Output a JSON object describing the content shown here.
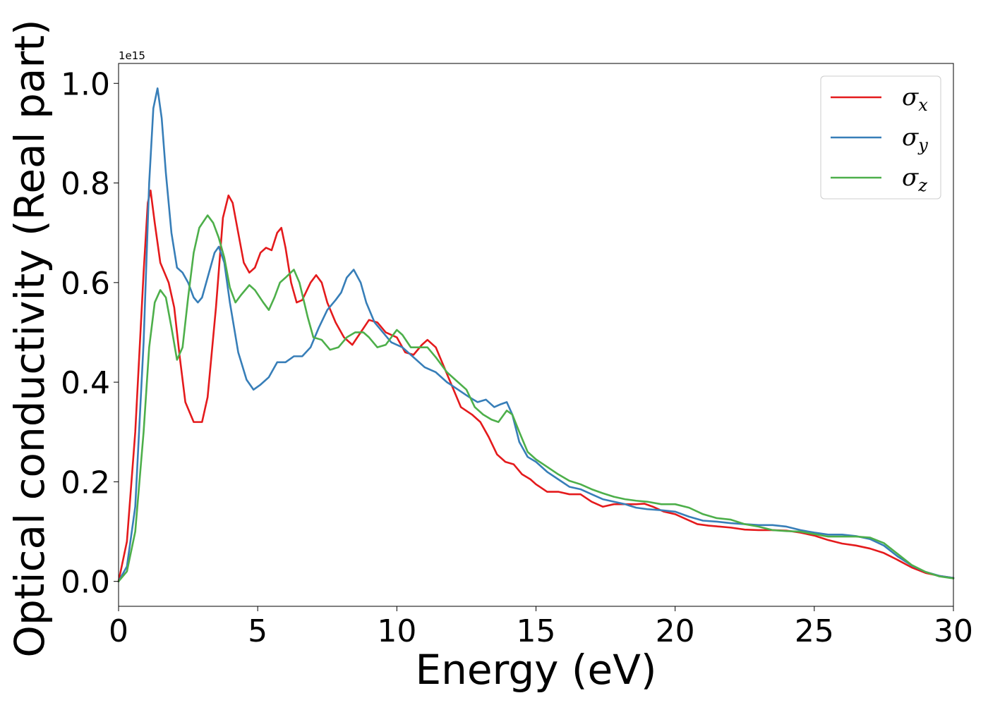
{
  "chart_data": {
    "type": "line",
    "title": "",
    "xlabel": "Energy (eV)",
    "ylabel": "Optical conductivity (Real part)",
    "offset_text": "1e15",
    "xlim": [
      0,
      30
    ],
    "ylim": [
      -0.05,
      1.04
    ],
    "x_ticks": [
      0,
      5,
      10,
      15,
      20,
      25,
      30
    ],
    "y_ticks": [
      0.0,
      0.2,
      0.4,
      0.6,
      0.8,
      1.0
    ],
    "x_tick_labels": [
      "0",
      "5",
      "10",
      "15",
      "20",
      "25",
      "30"
    ],
    "y_tick_labels": [
      "0.0",
      "0.2",
      "0.4",
      "0.6",
      "0.8",
      "1.0"
    ],
    "grid": false,
    "legend_position": "top-right",
    "series": [
      {
        "name": "σx",
        "symbol": "σ",
        "subscript": "x",
        "color": "#e41a1c",
        "points": [
          [
            0,
            0
          ],
          [
            0.3,
            0.08
          ],
          [
            0.6,
            0.3
          ],
          [
            0.9,
            0.62
          ],
          [
            1.05,
            0.76
          ],
          [
            1.15,
            0.785
          ],
          [
            1.3,
            0.72
          ],
          [
            1.5,
            0.64
          ],
          [
            1.8,
            0.6
          ],
          [
            2.0,
            0.55
          ],
          [
            2.2,
            0.45
          ],
          [
            2.4,
            0.36
          ],
          [
            2.7,
            0.32
          ],
          [
            3.0,
            0.32
          ],
          [
            3.2,
            0.37
          ],
          [
            3.5,
            0.55
          ],
          [
            3.75,
            0.73
          ],
          [
            3.95,
            0.775
          ],
          [
            4.1,
            0.76
          ],
          [
            4.3,
            0.7
          ],
          [
            4.5,
            0.64
          ],
          [
            4.7,
            0.62
          ],
          [
            4.9,
            0.63
          ],
          [
            5.1,
            0.66
          ],
          [
            5.3,
            0.67
          ],
          [
            5.5,
            0.665
          ],
          [
            5.7,
            0.7
          ],
          [
            5.85,
            0.71
          ],
          [
            6.0,
            0.67
          ],
          [
            6.2,
            0.6
          ],
          [
            6.4,
            0.56
          ],
          [
            6.6,
            0.565
          ],
          [
            6.9,
            0.6
          ],
          [
            7.1,
            0.615
          ],
          [
            7.3,
            0.6
          ],
          [
            7.5,
            0.56
          ],
          [
            7.8,
            0.52
          ],
          [
            8.1,
            0.49
          ],
          [
            8.4,
            0.475
          ],
          [
            8.7,
            0.5
          ],
          [
            9.0,
            0.525
          ],
          [
            9.3,
            0.52
          ],
          [
            9.6,
            0.5
          ],
          [
            10.0,
            0.49
          ],
          [
            10.3,
            0.46
          ],
          [
            10.6,
            0.455
          ],
          [
            10.9,
            0.475
          ],
          [
            11.1,
            0.485
          ],
          [
            11.4,
            0.47
          ],
          [
            11.7,
            0.43
          ],
          [
            12.0,
            0.39
          ],
          [
            12.3,
            0.35
          ],
          [
            12.7,
            0.335
          ],
          [
            13.0,
            0.32
          ],
          [
            13.3,
            0.29
          ],
          [
            13.6,
            0.255
          ],
          [
            13.9,
            0.24
          ],
          [
            14.2,
            0.235
          ],
          [
            14.5,
            0.215
          ],
          [
            14.8,
            0.205
          ],
          [
            15.0,
            0.195
          ],
          [
            15.4,
            0.18
          ],
          [
            15.8,
            0.18
          ],
          [
            16.2,
            0.175
          ],
          [
            16.6,
            0.175
          ],
          [
            17.0,
            0.16
          ],
          [
            17.4,
            0.15
          ],
          [
            17.8,
            0.155
          ],
          [
            18.2,
            0.155
          ],
          [
            18.6,
            0.155
          ],
          [
            18.9,
            0.156
          ],
          [
            19.2,
            0.15
          ],
          [
            19.6,
            0.14
          ],
          [
            20.0,
            0.135
          ],
          [
            20.4,
            0.125
          ],
          [
            20.8,
            0.115
          ],
          [
            21.2,
            0.112
          ],
          [
            21.6,
            0.11
          ],
          [
            22.0,
            0.108
          ],
          [
            22.5,
            0.104
          ],
          [
            23.0,
            0.103
          ],
          [
            23.5,
            0.103
          ],
          [
            24.0,
            0.102
          ],
          [
            24.5,
            0.098
          ],
          [
            25.0,
            0.092
          ],
          [
            25.5,
            0.083
          ],
          [
            26.0,
            0.076
          ],
          [
            26.5,
            0.072
          ],
          [
            27.0,
            0.066
          ],
          [
            27.5,
            0.057
          ],
          [
            28.0,
            0.043
          ],
          [
            28.5,
            0.028
          ],
          [
            29.0,
            0.017
          ],
          [
            29.5,
            0.011
          ],
          [
            30.0,
            0.007
          ]
        ]
      },
      {
        "name": "σy",
        "symbol": "σ",
        "subscript": "y",
        "color": "#377eb8",
        "points": [
          [
            0,
            0
          ],
          [
            0.3,
            0.03
          ],
          [
            0.6,
            0.15
          ],
          [
            0.9,
            0.48
          ],
          [
            1.1,
            0.8
          ],
          [
            1.25,
            0.95
          ],
          [
            1.4,
            0.99
          ],
          [
            1.55,
            0.93
          ],
          [
            1.7,
            0.82
          ],
          [
            1.9,
            0.7
          ],
          [
            2.1,
            0.63
          ],
          [
            2.3,
            0.62
          ],
          [
            2.5,
            0.6
          ],
          [
            2.7,
            0.57
          ],
          [
            2.85,
            0.56
          ],
          [
            3.0,
            0.57
          ],
          [
            3.2,
            0.61
          ],
          [
            3.45,
            0.66
          ],
          [
            3.6,
            0.672
          ],
          [
            3.8,
            0.64
          ],
          [
            4.0,
            0.56
          ],
          [
            4.3,
            0.46
          ],
          [
            4.6,
            0.405
          ],
          [
            4.85,
            0.385
          ],
          [
            5.1,
            0.395
          ],
          [
            5.4,
            0.41
          ],
          [
            5.7,
            0.44
          ],
          [
            6.0,
            0.44
          ],
          [
            6.3,
            0.452
          ],
          [
            6.6,
            0.452
          ],
          [
            6.9,
            0.47
          ],
          [
            7.2,
            0.51
          ],
          [
            7.5,
            0.545
          ],
          [
            7.8,
            0.565
          ],
          [
            8.0,
            0.58
          ],
          [
            8.2,
            0.61
          ],
          [
            8.45,
            0.626
          ],
          [
            8.7,
            0.6
          ],
          [
            8.9,
            0.56
          ],
          [
            9.2,
            0.52
          ],
          [
            9.5,
            0.5
          ],
          [
            9.8,
            0.48
          ],
          [
            10.2,
            0.47
          ],
          [
            10.6,
            0.45
          ],
          [
            11.0,
            0.43
          ],
          [
            11.4,
            0.42
          ],
          [
            11.8,
            0.4
          ],
          [
            12.2,
            0.385
          ],
          [
            12.6,
            0.37
          ],
          [
            12.9,
            0.36
          ],
          [
            13.2,
            0.365
          ],
          [
            13.5,
            0.35
          ],
          [
            13.7,
            0.355
          ],
          [
            13.95,
            0.36
          ],
          [
            14.15,
            0.335
          ],
          [
            14.4,
            0.28
          ],
          [
            14.7,
            0.25
          ],
          [
            15.0,
            0.24
          ],
          [
            15.4,
            0.22
          ],
          [
            15.8,
            0.205
          ],
          [
            16.2,
            0.19
          ],
          [
            16.6,
            0.185
          ],
          [
            17.0,
            0.175
          ],
          [
            17.4,
            0.165
          ],
          [
            17.8,
            0.16
          ],
          [
            18.2,
            0.155
          ],
          [
            18.6,
            0.148
          ],
          [
            19.0,
            0.145
          ],
          [
            19.5,
            0.143
          ],
          [
            20.0,
            0.14
          ],
          [
            20.5,
            0.13
          ],
          [
            21.0,
            0.122
          ],
          [
            21.5,
            0.12
          ],
          [
            22.0,
            0.117
          ],
          [
            22.5,
            0.115
          ],
          [
            23.0,
            0.113
          ],
          [
            23.5,
            0.113
          ],
          [
            24.0,
            0.11
          ],
          [
            24.5,
            0.103
          ],
          [
            25.0,
            0.098
          ],
          [
            25.5,
            0.094
          ],
          [
            26.0,
            0.094
          ],
          [
            26.5,
            0.091
          ],
          [
            27.0,
            0.085
          ],
          [
            27.5,
            0.072
          ],
          [
            28.0,
            0.05
          ],
          [
            28.5,
            0.032
          ],
          [
            29.0,
            0.019
          ],
          [
            29.5,
            0.011
          ],
          [
            30.0,
            0.007
          ]
        ]
      },
      {
        "name": "σz",
        "symbol": "σ",
        "subscript": "z",
        "color": "#4daf4a",
        "points": [
          [
            0,
            0
          ],
          [
            0.3,
            0.02
          ],
          [
            0.6,
            0.1
          ],
          [
            0.9,
            0.3
          ],
          [
            1.1,
            0.47
          ],
          [
            1.3,
            0.56
          ],
          [
            1.5,
            0.585
          ],
          [
            1.7,
            0.57
          ],
          [
            1.9,
            0.51
          ],
          [
            2.1,
            0.445
          ],
          [
            2.3,
            0.47
          ],
          [
            2.5,
            0.57
          ],
          [
            2.7,
            0.66
          ],
          [
            2.9,
            0.71
          ],
          [
            3.2,
            0.735
          ],
          [
            3.4,
            0.72
          ],
          [
            3.6,
            0.69
          ],
          [
            3.8,
            0.65
          ],
          [
            4.0,
            0.59
          ],
          [
            4.2,
            0.56
          ],
          [
            4.4,
            0.575
          ],
          [
            4.7,
            0.595
          ],
          [
            4.9,
            0.585
          ],
          [
            5.2,
            0.56
          ],
          [
            5.4,
            0.545
          ],
          [
            5.6,
            0.57
          ],
          [
            5.8,
            0.6
          ],
          [
            6.0,
            0.61
          ],
          [
            6.3,
            0.626
          ],
          [
            6.5,
            0.6
          ],
          [
            6.8,
            0.53
          ],
          [
            7.0,
            0.49
          ],
          [
            7.3,
            0.485
          ],
          [
            7.6,
            0.465
          ],
          [
            7.9,
            0.47
          ],
          [
            8.2,
            0.49
          ],
          [
            8.5,
            0.5
          ],
          [
            8.8,
            0.5
          ],
          [
            9.0,
            0.49
          ],
          [
            9.3,
            0.47
          ],
          [
            9.6,
            0.475
          ],
          [
            9.8,
            0.49
          ],
          [
            10.0,
            0.505
          ],
          [
            10.2,
            0.495
          ],
          [
            10.5,
            0.47
          ],
          [
            10.8,
            0.47
          ],
          [
            11.1,
            0.47
          ],
          [
            11.4,
            0.45
          ],
          [
            11.8,
            0.42
          ],
          [
            12.2,
            0.4
          ],
          [
            12.5,
            0.385
          ],
          [
            12.8,
            0.35
          ],
          [
            13.1,
            0.335
          ],
          [
            13.4,
            0.325
          ],
          [
            13.65,
            0.32
          ],
          [
            13.95,
            0.343
          ],
          [
            14.15,
            0.335
          ],
          [
            14.4,
            0.3
          ],
          [
            14.7,
            0.26
          ],
          [
            15.0,
            0.245
          ],
          [
            15.4,
            0.23
          ],
          [
            15.8,
            0.215
          ],
          [
            16.2,
            0.202
          ],
          [
            16.6,
            0.195
          ],
          [
            17.0,
            0.185
          ],
          [
            17.4,
            0.177
          ],
          [
            17.8,
            0.17
          ],
          [
            18.2,
            0.165
          ],
          [
            18.6,
            0.162
          ],
          [
            19.0,
            0.16
          ],
          [
            19.5,
            0.155
          ],
          [
            20.0,
            0.155
          ],
          [
            20.5,
            0.148
          ],
          [
            21.0,
            0.135
          ],
          [
            21.5,
            0.127
          ],
          [
            22.0,
            0.124
          ],
          [
            22.5,
            0.115
          ],
          [
            23.0,
            0.11
          ],
          [
            23.5,
            0.103
          ],
          [
            24.0,
            0.101
          ],
          [
            24.5,
            0.1
          ],
          [
            25.0,
            0.095
          ],
          [
            25.5,
            0.09
          ],
          [
            26.0,
            0.09
          ],
          [
            26.5,
            0.09
          ],
          [
            27.0,
            0.088
          ],
          [
            27.5,
            0.077
          ],
          [
            28.0,
            0.055
          ],
          [
            28.5,
            0.033
          ],
          [
            29.0,
            0.019
          ],
          [
            29.5,
            0.01
          ],
          [
            30.0,
            0.006
          ]
        ]
      }
    ]
  }
}
